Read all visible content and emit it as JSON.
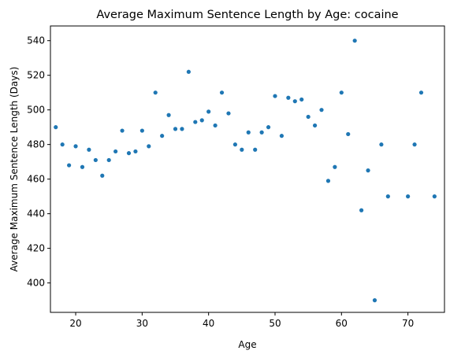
{
  "chart_data": {
    "type": "scatter",
    "title": "Average Maximum Sentence Length by Age: cocaine",
    "xlabel": "Age",
    "ylabel": "Average Maximum Sentence Length (Days)",
    "xlim": [
      16.2,
      75.5
    ],
    "ylim": [
      383,
      548.5
    ],
    "xticks": [
      20,
      30,
      40,
      50,
      60,
      70
    ],
    "yticks": [
      400,
      420,
      440,
      460,
      480,
      500,
      520,
      540
    ],
    "grid": false,
    "marker_color": "#1f77b4",
    "series": [
      {
        "x": [
          17,
          18,
          19,
          20,
          21,
          22,
          23,
          24,
          25,
          26,
          27,
          28,
          29,
          30,
          31,
          32,
          33,
          34,
          35,
          36,
          37,
          38,
          39,
          40,
          41,
          42,
          43,
          44,
          45,
          46,
          47,
          48,
          49,
          50,
          51,
          52,
          53,
          54,
          55,
          56,
          57,
          58,
          59,
          60,
          61,
          62,
          63,
          64,
          65,
          66,
          67,
          70,
          71,
          72,
          74
        ],
        "y": [
          490,
          480,
          468,
          479,
          467,
          477,
          471,
          462,
          471,
          476,
          488,
          475,
          476,
          488,
          479,
          510,
          485,
          497,
          489,
          489,
          522,
          493,
          494,
          499,
          491,
          510,
          498,
          480,
          477,
          487,
          477,
          487,
          490,
          508,
          485,
          507,
          505,
          506,
          496,
          491,
          500,
          459,
          467,
          510,
          486,
          540,
          442,
          465,
          390,
          480,
          450,
          450,
          480,
          510,
          450
        ]
      }
    ]
  }
}
